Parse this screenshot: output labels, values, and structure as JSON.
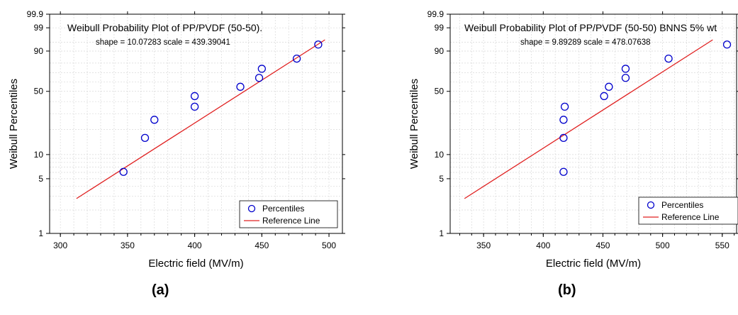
{
  "chart_data": [
    {
      "type": "scatter",
      "title": "Weibull Probability Plot of PP/PVDF (50-50).",
      "subtitle": "shape = 10.07283  scale = 439.39041",
      "xlabel": "Electric field (MV/m)",
      "ylabel": "Weibull Percentiles",
      "xlim": [
        292,
        510
      ],
      "ylim": [
        1,
        99.9
      ],
      "y_scale": "weibull",
      "x_ticks": [
        "300",
        "350",
        "400",
        "450",
        "500"
      ],
      "x_tick_values": [
        300,
        350,
        400,
        450,
        500
      ],
      "y_ticks": [
        "1",
        "5",
        "10",
        "50",
        "90",
        "99",
        "99.9"
      ],
      "y_tick_values": [
        1,
        5,
        10,
        50,
        90,
        99,
        99.9
      ],
      "grid": true,
      "legend_position": "bottom-right",
      "series": [
        {
          "name": "Percentiles",
          "kind": "points",
          "color": "#0000cc",
          "x": [
            347,
            363,
            370,
            400,
            400,
            434,
            448,
            450,
            476,
            492
          ],
          "y": [
            6.1,
            15.9,
            25.7,
            35.5,
            45.2,
            54.8,
            64.5,
            74.3,
            84.1,
            93.9
          ]
        },
        {
          "name": "Reference Line",
          "kind": "line",
          "color": "#e02020",
          "x": [
            312,
            497
          ],
          "y": [
            2.8,
            96.0
          ]
        }
      ],
      "caption": "(a)"
    },
    {
      "type": "scatter",
      "title": "Weibull Probability Plot of PP/PVDF (50-50) BNNS 5% wt",
      "subtitle": "shape = 9.89289  scale = 478.07638",
      "xlabel": "Electric field (MV/m)",
      "ylabel": "Weibull Percentiles",
      "xlim": [
        322,
        562
      ],
      "ylim": [
        1,
        99.9
      ],
      "y_scale": "weibull",
      "x_ticks": [
        "350",
        "400",
        "450",
        "500",
        "550"
      ],
      "x_tick_values": [
        350,
        400,
        450,
        500,
        550
      ],
      "y_ticks": [
        "1",
        "5",
        "10",
        "50",
        "90",
        "99",
        "99.9"
      ],
      "y_tick_values": [
        1,
        5,
        10,
        50,
        90,
        99,
        99.9
      ],
      "grid": true,
      "legend_position": "bottom-right",
      "series": [
        {
          "name": "Percentiles",
          "kind": "points",
          "color": "#0000cc",
          "x": [
            417,
            417,
            417,
            418,
            451,
            455,
            469,
            469,
            505,
            554
          ],
          "y": [
            6.1,
            15.9,
            25.7,
            35.5,
            45.2,
            54.8,
            64.5,
            74.3,
            84.1,
            93.9
          ]
        },
        {
          "name": "Reference Line",
          "kind": "line",
          "color": "#e02020",
          "x": [
            334,
            542
          ],
          "y": [
            2.8,
            96.0
          ]
        }
      ],
      "caption": "(b)"
    }
  ]
}
